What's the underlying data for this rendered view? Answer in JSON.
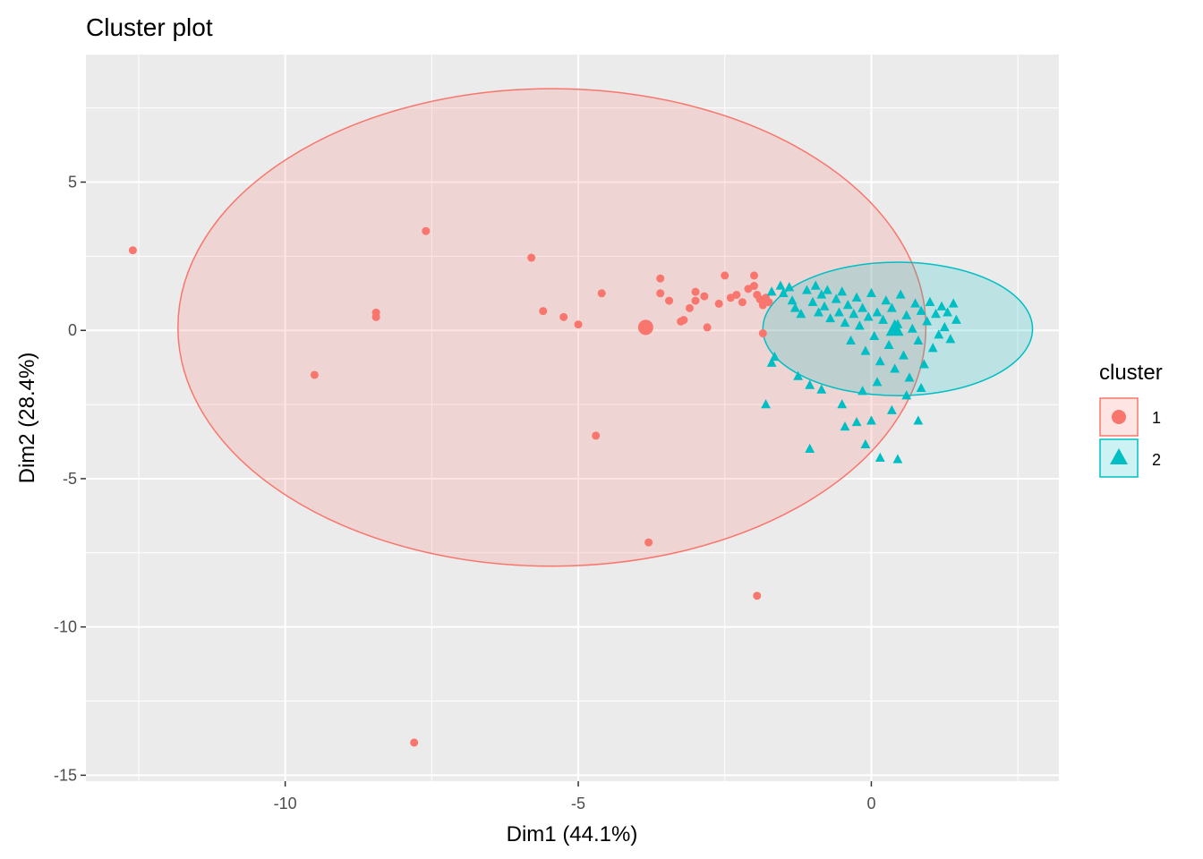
{
  "chart_data": {
    "type": "scatter",
    "title": "Cluster plot",
    "xlabel": "Dim1 (44.1%)",
    "ylabel": "Dim2 (28.4%)",
    "xlim": [
      -13.4,
      3.2
    ],
    "ylim": [
      -15.2,
      9.3
    ],
    "x_ticks": [
      -10,
      -5,
      0
    ],
    "y_ticks": [
      5,
      0,
      -5,
      -10,
      -15
    ],
    "grid": true,
    "legend": {
      "title": "cluster",
      "placement": "right"
    },
    "colors": {
      "cluster1": "#F8766D",
      "cluster2": "#00BFC4",
      "panel": "#EBEBEB",
      "grid": "#FFFFFF"
    },
    "series": [
      {
        "name": "1",
        "shape": "circle",
        "color": "#F8766D",
        "centroid": [
          -3.85,
          0.1
        ],
        "ellipse": {
          "center": [
            -5.45,
            0.1
          ],
          "rx": 6.38,
          "ry": 8.05
        },
        "points": [
          [
            -12.6,
            2.7
          ],
          [
            -7.6,
            3.35
          ],
          [
            -5.8,
            2.45
          ],
          [
            -8.45,
            0.6
          ],
          [
            -8.45,
            0.45
          ],
          [
            -9.5,
            -1.5
          ],
          [
            -5.6,
            0.65
          ],
          [
            -5.25,
            0.45
          ],
          [
            -5.0,
            0.2
          ],
          [
            -4.6,
            1.25
          ],
          [
            -3.6,
            1.75
          ],
          [
            -3.6,
            1.25
          ],
          [
            -3.45,
            1.0
          ],
          [
            -3.25,
            0.3
          ],
          [
            -3.2,
            0.35
          ],
          [
            -3.1,
            0.75
          ],
          [
            -3.0,
            1.0
          ],
          [
            -2.85,
            1.15
          ],
          [
            -2.8,
            0.1
          ],
          [
            -3.0,
            1.3
          ],
          [
            -2.5,
            1.85
          ],
          [
            -2.4,
            1.1
          ],
          [
            -2.6,
            0.9
          ],
          [
            -2.3,
            1.2
          ],
          [
            -2.1,
            1.4
          ],
          [
            -2.2,
            0.95
          ],
          [
            -2.0,
            1.85
          ],
          [
            -2.0,
            1.5
          ],
          [
            -1.95,
            1.2
          ],
          [
            -1.9,
            1.05
          ],
          [
            -1.85,
            0.85
          ],
          [
            -1.8,
            1.1
          ],
          [
            -1.75,
            0.95
          ],
          [
            -1.85,
            -0.1
          ],
          [
            -4.7,
            -3.55
          ],
          [
            -3.8,
            -7.15
          ],
          [
            -1.95,
            -8.95
          ],
          [
            -7.8,
            -13.9
          ]
        ]
      },
      {
        "name": "2",
        "shape": "triangle",
        "color": "#00BFC4",
        "centroid": [
          0.4,
          0.05
        ],
        "ellipse": {
          "center": [
            0.45,
            0.05
          ],
          "rx": 2.3,
          "ry": 2.25
        },
        "points": [
          [
            -1.7,
            1.3
          ],
          [
            -1.55,
            1.5
          ],
          [
            -1.5,
            1.25
          ],
          [
            -1.4,
            1.45
          ],
          [
            -1.35,
            1.0
          ],
          [
            -1.3,
            0.75
          ],
          [
            -1.2,
            0.55
          ],
          [
            -1.1,
            1.35
          ],
          [
            -1.0,
            0.95
          ],
          [
            -0.95,
            1.5
          ],
          [
            -0.9,
            0.6
          ],
          [
            -0.85,
            1.2
          ],
          [
            -0.8,
            0.8
          ],
          [
            -0.75,
            1.35
          ],
          [
            -0.7,
            0.4
          ],
          [
            -0.6,
            1.05
          ],
          [
            -0.55,
            0.6
          ],
          [
            -0.5,
            1.3
          ],
          [
            -0.45,
            0.25
          ],
          [
            -0.4,
            0.85
          ],
          [
            -0.35,
            -0.35
          ],
          [
            -0.3,
            0.55
          ],
          [
            -0.25,
            1.1
          ],
          [
            -0.2,
            0.15
          ],
          [
            -0.15,
            0.75
          ],
          [
            -0.1,
            -0.7
          ],
          [
            -0.05,
            0.45
          ],
          [
            0.0,
            1.25
          ],
          [
            0.05,
            -0.2
          ],
          [
            0.1,
            0.6
          ],
          [
            0.15,
            -1.05
          ],
          [
            0.2,
            0.35
          ],
          [
            0.25,
            1.0
          ],
          [
            0.3,
            -0.5
          ],
          [
            0.35,
            0.75
          ],
          [
            0.4,
            -1.3
          ],
          [
            0.45,
            0.2
          ],
          [
            0.5,
            1.2
          ],
          [
            0.55,
            -0.85
          ],
          [
            0.6,
            0.5
          ],
          [
            0.65,
            -1.6
          ],
          [
            0.7,
            0.05
          ],
          [
            0.75,
            0.9
          ],
          [
            0.8,
            -0.35
          ],
          [
            0.85,
            0.65
          ],
          [
            0.9,
            -1.15
          ],
          [
            0.95,
            0.3
          ],
          [
            1.0,
            0.95
          ],
          [
            1.05,
            -0.6
          ],
          [
            1.1,
            0.55
          ],
          [
            1.15,
            -0.15
          ],
          [
            1.2,
            0.8
          ],
          [
            1.25,
            0.1
          ],
          [
            1.3,
            0.6
          ],
          [
            1.35,
            -0.3
          ],
          [
            1.4,
            0.9
          ],
          [
            1.45,
            0.35
          ],
          [
            -1.65,
            -0.9
          ],
          [
            -1.7,
            -1.1
          ],
          [
            -1.25,
            -1.55
          ],
          [
            -1.8,
            -2.5
          ],
          [
            -1.05,
            -1.85
          ],
          [
            -0.5,
            -2.5
          ],
          [
            -0.85,
            -2.0
          ],
          [
            -0.25,
            -3.1
          ],
          [
            0.0,
            -3.05
          ],
          [
            0.35,
            -2.7
          ],
          [
            0.8,
            -3.05
          ],
          [
            -0.1,
            -3.85
          ],
          [
            -0.45,
            -3.25
          ],
          [
            -1.05,
            -4.0
          ],
          [
            0.15,
            -4.3
          ],
          [
            0.45,
            -4.35
          ],
          [
            -0.15,
            -2.05
          ],
          [
            0.1,
            -1.75
          ],
          [
            0.6,
            -2.2
          ],
          [
            0.85,
            -1.95
          ]
        ]
      }
    ]
  }
}
